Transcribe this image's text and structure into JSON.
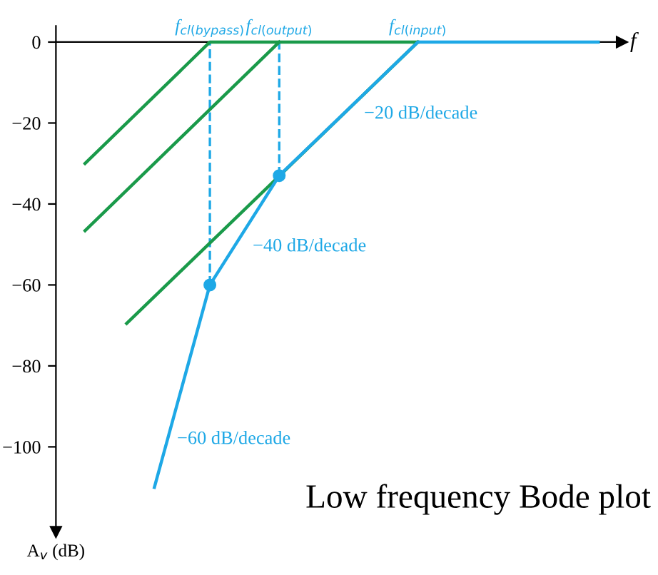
{
  "chart_data": {
    "type": "line",
    "xlabel": "f",
    "ylabel": "A$_{v}$ (dB)",
    "categories": [
      null,
      null,
      null,
      null,
      null,
      null,
      null,
      null,
      null,
      "f$_{cl(bypass)}$",
      null,
      null,
      null,
      null,
      "f$_{cl(output)}$",
      null,
      null,
      null,
      null,
      null,
      null,
      null,
      null,
      null,
      "f$_{cl(input)}$",
      null,
      null,
      null,
      null,
      null,
      null,
      null,
      null,
      null,
      null,
      null,
      null,
      null
    ],
    "ylim": [
      -121,
      4
    ],
    "yticks": [
      {
        "value": 0,
        "label": "0"
      },
      {
        "value": -20,
        "label": "−20"
      },
      {
        "value": -40,
        "label": "−40"
      },
      {
        "value": -60,
        "label": "−60"
      },
      {
        "value": -80,
        "label": "−80"
      },
      {
        "value": -100,
        "label": "−100"
      }
    ],
    "series": [
      {
        "color": "#1a9a4a",
        "values": [
          -30,
          null,
          null,
          null,
          null,
          null,
          null,
          null,
          null,
          0,
          null,
          null,
          null,
          null,
          null,
          null,
          null,
          null,
          null,
          null,
          null,
          null,
          null,
          null,
          0,
          null,
          null,
          null,
          null,
          null,
          null,
          null,
          null,
          null,
          null,
          null,
          null,
          null
        ]
      },
      {
        "color": "#1a9a4a",
        "values": [
          -46.6,
          null,
          null,
          null,
          null,
          null,
          null,
          null,
          null,
          null,
          null,
          null,
          null,
          null,
          0,
          null,
          null,
          null,
          null,
          null,
          null,
          null,
          null,
          null,
          null,
          null,
          null,
          null,
          null,
          null,
          null,
          null,
          null,
          null,
          null,
          null,
          null,
          null
        ]
      },
      {
        "color": "#1a9a4a",
        "values": [
          null,
          null,
          null,
          -69.5,
          null,
          null,
          null,
          null,
          null,
          null,
          null,
          null,
          null,
          null,
          null,
          null,
          null,
          null,
          null,
          null,
          null,
          null,
          null,
          null,
          0,
          null,
          null,
          null,
          null,
          null,
          null,
          null,
          null,
          null,
          null,
          null,
          null,
          null
        ]
      },
      {
        "color": "#1ea8e6",
        "values": [
          null,
          null,
          null,
          null,
          null,
          -110,
          null,
          null,
          null,
          -60,
          null,
          null,
          null,
          null,
          -33,
          null,
          null,
          null,
          null,
          null,
          null,
          null,
          null,
          null,
          0,
          null,
          null,
          null,
          null,
          null,
          null,
          null,
          null,
          null,
          null,
          null,
          null,
          0
        ]
      },
      {
        "color": "#1ea8e6",
        "type": "scatter",
        "marker": "circle",
        "line_style": "dashed",
        "values": [
          null,
          null,
          null,
          null,
          null,
          null,
          null,
          null,
          null,
          -60,
          null,
          null,
          null,
          null,
          -33,
          null,
          null,
          null,
          null,
          null,
          null,
          null,
          null,
          null,
          null,
          null,
          null,
          null,
          null,
          null,
          null,
          null,
          null,
          null,
          null,
          null,
          null,
          null
        ],
        "errors": [
          null,
          null,
          null,
          null,
          null,
          null,
          null,
          null,
          null,
          [
            -60,
            0
          ],
          null,
          null,
          null,
          null,
          [
            -33,
            0
          ],
          null,
          null,
          null,
          null,
          null,
          null,
          null,
          null,
          null,
          null,
          null,
          null,
          null,
          null,
          null,
          null,
          null,
          null,
          null,
          null,
          null,
          null,
          null
        ]
      }
    ],
    "annotations": [
      "−20 dB/decade",
      "−40 dB/decade",
      "−60 dB/decade",
      "Low frequency Bode plot"
    ]
  }
}
